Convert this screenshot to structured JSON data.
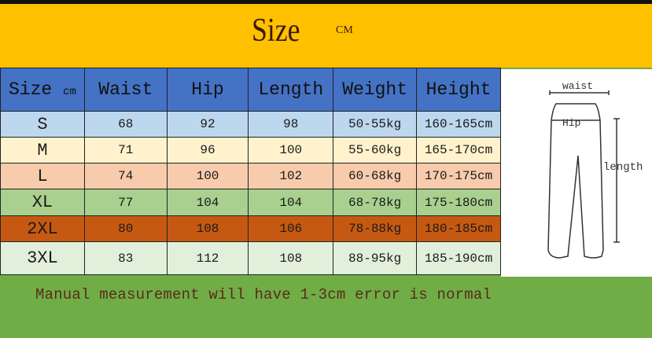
{
  "title": {
    "text": "Size",
    "unit": "CM"
  },
  "table": {
    "headers": [
      "Size",
      "Waist",
      "Hip",
      "Length",
      "Weight",
      "Height"
    ],
    "size_header_unit": "cm",
    "rows": [
      {
        "size": "S",
        "waist": "68",
        "hip": "92",
        "length": "98",
        "weight": "50-55kg",
        "height": "160-165cm",
        "color": "#bdd7ee"
      },
      {
        "size": "M",
        "waist": "71",
        "hip": "96",
        "length": "100",
        "weight": "55-60kg",
        "height": "165-170cm",
        "color": "#fff2cc"
      },
      {
        "size": "L",
        "waist": "74",
        "hip": "100",
        "length": "102",
        "weight": "60-68kg",
        "height": "170-175cm",
        "color": "#f8cbad"
      },
      {
        "size": "XL",
        "waist": "77",
        "hip": "104",
        "length": "104",
        "weight": "68-78kg",
        "height": "175-180cm",
        "color": "#a9d08e"
      },
      {
        "size": "2XL",
        "waist": "80",
        "hip": "108",
        "length": "106",
        "weight": "78-88kg",
        "height": "180-185cm",
        "color": "#c65911"
      },
      {
        "size": "3XL",
        "waist": "83",
        "hip": "112",
        "length": "108",
        "weight": "88-95kg",
        "height": "185-190cm",
        "color": "#e2efda"
      }
    ]
  },
  "diagram": {
    "waist_label": "waist",
    "hip_label": "Hip",
    "length_label": "length"
  },
  "note": "Manual measurement will have 1-3cm error is normal",
  "colors": {
    "banner": "#ffc000",
    "header": "#4472c4",
    "footer": "#70ad47"
  }
}
